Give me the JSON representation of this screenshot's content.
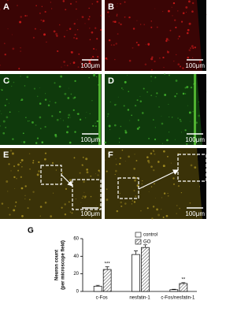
{
  "panels": [
    {
      "label": "A",
      "scale_bar": "100μm"
    },
    {
      "label": "B",
      "scale_bar": "100μm"
    },
    {
      "label": "C",
      "scale_bar": "100μm"
    },
    {
      "label": "D",
      "scale_bar": "100μm"
    },
    {
      "label": "E",
      "scale_bar": "100μm"
    },
    {
      "label": "F",
      "scale_bar": "100μm"
    }
  ],
  "chart_data": {
    "type": "bar",
    "panel_label": "G",
    "y_label": [
      "Neuron count",
      "(per microscope field)"
    ],
    "categories": [
      "c-Fos",
      "nesfatin-1",
      "c-Fos/nesfatin-1"
    ],
    "series": [
      {
        "name": "control",
        "color": "#ffffff",
        "hatch": false,
        "values": [
          6,
          42,
          2
        ],
        "errors": [
          1,
          4,
          0.5
        ]
      },
      {
        "name": "GO",
        "color": "#ffffff",
        "hatch": true,
        "values": [
          25,
          50,
          9
        ],
        "errors": [
          3,
          3,
          1
        ]
      }
    ],
    "significance": [
      "***",
      null,
      "**"
    ],
    "ylim": [
      0,
      60
    ],
    "yticks": [
      0,
      20,
      40,
      60
    ]
  }
}
